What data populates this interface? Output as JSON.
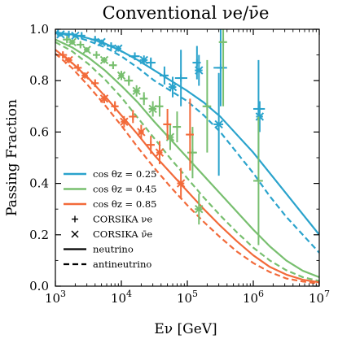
{
  "chart_data": {
    "type": "line",
    "title": "Conventional νe/ν̄e",
    "xlabel": "Eν [GeV]",
    "ylabel": "Passing Fraction",
    "xscale": "log",
    "xlim": [
      1000,
      10000000
    ],
    "ylim": [
      0.0,
      1.0
    ],
    "xticks": [
      {
        "value": 1000,
        "label": "10^3"
      },
      {
        "value": 10000,
        "label": "10^4"
      },
      {
        "value": 100000,
        "label": "10^5"
      },
      {
        "value": 1000000,
        "label": "10^6"
      },
      {
        "value": 10000000,
        "label": "10^7"
      }
    ],
    "yticks": [
      0.0,
      0.2,
      0.4,
      0.6,
      0.8,
      1.0
    ],
    "grid": false,
    "legend": {
      "placement": "bottom-left",
      "entries": [
        {
          "label": "cos θz = 0.25",
          "kind": "line",
          "color": "#2aa3cc"
        },
        {
          "label": "cos θz = 0.45",
          "kind": "line",
          "color": "#78bf6f"
        },
        {
          "label": "cos θz = 0.85",
          "kind": "line",
          "color": "#f26a3a"
        },
        {
          "label": "CORSIKA νe",
          "kind": "plus-marker",
          "color": "#000000"
        },
        {
          "label": "CORSIKA ν̄e",
          "kind": "cross-marker",
          "color": "#000000"
        },
        {
          "label": "neutrino",
          "kind": "solid",
          "color": "#000000"
        },
        {
          "label": "antineutrino",
          "kind": "dashed",
          "color": "#000000"
        }
      ]
    },
    "x": [
      1000,
      1778,
      3162,
      5623,
      10000,
      17783,
      31623,
      56234,
      100000,
      177828,
      316228,
      562341,
      1000000,
      1778279,
      3162278,
      5623413,
      10000000
    ],
    "series": [
      {
        "group": "cos θz = 0.25",
        "flavor": "neutrino",
        "style": "solid",
        "color": "#2aa3cc",
        "values": [
          0.988,
          0.98,
          0.965,
          0.945,
          0.915,
          0.88,
          0.84,
          0.8,
          0.76,
          0.715,
          0.66,
          0.59,
          0.52,
          0.44,
          0.36,
          0.28,
          0.2
        ]
      },
      {
        "group": "cos θz = 0.25",
        "flavor": "antineutrino",
        "style": "dashed",
        "color": "#2aa3cc",
        "values": [
          0.985,
          0.975,
          0.955,
          0.93,
          0.895,
          0.85,
          0.8,
          0.76,
          0.72,
          0.665,
          0.6,
          0.52,
          0.44,
          0.35,
          0.27,
          0.2,
          0.13
        ]
      },
      {
        "group": "cos θz = 0.45",
        "flavor": "neutrino",
        "style": "solid",
        "color": "#78bf6f",
        "values": [
          0.96,
          0.93,
          0.89,
          0.84,
          0.78,
          0.715,
          0.64,
          0.57,
          0.5,
          0.43,
          0.36,
          0.29,
          0.22,
          0.155,
          0.1,
          0.06,
          0.035
        ]
      },
      {
        "group": "cos θz = 0.45",
        "flavor": "antineutrino",
        "style": "dashed",
        "color": "#78bf6f",
        "values": [
          0.95,
          0.915,
          0.865,
          0.805,
          0.735,
          0.655,
          0.575,
          0.495,
          0.42,
          0.345,
          0.275,
          0.21,
          0.15,
          0.1,
          0.062,
          0.035,
          0.02
        ]
      },
      {
        "group": "cos θz = 0.85",
        "flavor": "neutrino",
        "style": "solid",
        "color": "#f26a3a",
        "values": [
          0.92,
          0.87,
          0.81,
          0.74,
          0.665,
          0.59,
          0.51,
          0.44,
          0.37,
          0.3,
          0.235,
          0.175,
          0.12,
          0.075,
          0.045,
          0.025,
          0.015
        ]
      },
      {
        "group": "cos θz = 0.85",
        "flavor": "antineutrino",
        "style": "dashed",
        "color": "#f26a3a",
        "values": [
          0.905,
          0.85,
          0.78,
          0.705,
          0.625,
          0.54,
          0.46,
          0.385,
          0.315,
          0.25,
          0.19,
          0.135,
          0.09,
          0.055,
          0.03,
          0.018,
          0.01
        ]
      }
    ],
    "corsika_points": [
      {
        "group": "cos θz = 0.25",
        "color": "#2aa3cc",
        "marker": "plus",
        "E": 1100,
        "y": 0.985,
        "yerr": 0.008,
        "xlo": 1000,
        "xhi": 1260
      },
      {
        "group": "cos θz = 0.25",
        "color": "#2aa3cc",
        "marker": "plus",
        "E": 1600,
        "y": 0.98,
        "yerr": 0.008,
        "xlo": 1400,
        "xhi": 1800
      },
      {
        "group": "cos θz = 0.25",
        "color": "#2aa3cc",
        "marker": "plus",
        "E": 2500,
        "y": 0.975,
        "yerr": 0.01,
        "xlo": 2200,
        "xhi": 2800
      },
      {
        "group": "cos θz = 0.25",
        "color": "#2aa3cc",
        "marker": "plus",
        "E": 4000,
        "y": 0.96,
        "yerr": 0.01,
        "xlo": 3500,
        "xhi": 4500
      },
      {
        "group": "cos θz = 0.25",
        "color": "#2aa3cc",
        "marker": "plus",
        "E": 7000,
        "y": 0.935,
        "yerr": 0.012,
        "xlo": 6000,
        "xhi": 8000
      },
      {
        "group": "cos θz = 0.25",
        "color": "#2aa3cc",
        "marker": "plus",
        "E": 16000,
        "y": 0.895,
        "yerr": 0.015,
        "xlo": 13000,
        "xhi": 19000
      },
      {
        "group": "cos θz = 0.25",
        "color": "#2aa3cc",
        "marker": "plus",
        "E": 28000,
        "y": 0.87,
        "yerr": 0.02,
        "xlo": 24000,
        "xhi": 33000
      },
      {
        "group": "cos θz = 0.25",
        "color": "#2aa3cc",
        "marker": "plus",
        "E": 45000,
        "y": 0.82,
        "yerr": 0.035,
        "xlo": 38000,
        "xhi": 52000
      },
      {
        "group": "cos θz = 0.25",
        "color": "#2aa3cc",
        "marker": "plus",
        "E": 80000,
        "y": 0.81,
        "yerr": 0.11,
        "xlo": 65000,
        "xhi": 100000
      },
      {
        "group": "cos θz = 0.25",
        "color": "#2aa3cc",
        "marker": "plus",
        "E": 140000,
        "y": 0.87,
        "yerr": 0.065,
        "xlo": 120000,
        "xhi": 160000
      },
      {
        "group": "cos θz = 0.25",
        "color": "#2aa3cc",
        "marker": "plus",
        "E": 320000,
        "y": 0.85,
        "yerr": 0.15,
        "xlo": 250000,
        "xhi": 400000
      },
      {
        "group": "cos θz = 0.25",
        "color": "#2aa3cc",
        "marker": "plus",
        "E": 1200000,
        "y": 0.69,
        "yerr": 0.19,
        "xlo": 1000000,
        "xhi": 1500000
      },
      {
        "group": "cos θz = 0.25",
        "color": "#2aa3cc",
        "marker": "cross",
        "E": 1200,
        "y": 0.98,
        "yerr": 0.008,
        "xlo": 1050,
        "xhi": 1350
      },
      {
        "group": "cos θz = 0.25",
        "color": "#2aa3cc",
        "marker": "cross",
        "E": 2000,
        "y": 0.975,
        "yerr": 0.008,
        "xlo": 1800,
        "xhi": 2200
      },
      {
        "group": "cos θz = 0.25",
        "color": "#2aa3cc",
        "marker": "cross",
        "E": 5000,
        "y": 0.95,
        "yerr": 0.01,
        "xlo": 4500,
        "xhi": 5500
      },
      {
        "group": "cos θz = 0.25",
        "color": "#2aa3cc",
        "marker": "cross",
        "E": 9000,
        "y": 0.925,
        "yerr": 0.012,
        "xlo": 8000,
        "xhi": 10000
      },
      {
        "group": "cos θz = 0.25",
        "color": "#2aa3cc",
        "marker": "cross",
        "E": 22000,
        "y": 0.88,
        "yerr": 0.018,
        "xlo": 19000,
        "xhi": 25000
      },
      {
        "group": "cos θz = 0.25",
        "color": "#2aa3cc",
        "marker": "cross",
        "E": 60000,
        "y": 0.775,
        "yerr": 0.04,
        "xlo": 52000,
        "xhi": 68000
      },
      {
        "group": "cos θz = 0.25",
        "color": "#2aa3cc",
        "marker": "cross",
        "E": 150000,
        "y": 0.84,
        "yerr": 0.06,
        "xlo": 130000,
        "xhi": 170000
      },
      {
        "group": "cos θz = 0.25",
        "color": "#2aa3cc",
        "marker": "cross",
        "E": 300000,
        "y": 0.63,
        "yerr": 0.2,
        "xlo": 250000,
        "xhi": 350000
      },
      {
        "group": "cos θz = 0.25",
        "color": "#2aa3cc",
        "marker": "cross",
        "E": 1250000,
        "y": 0.66,
        "yerr": 0.06,
        "xlo": 1100000,
        "xhi": 1400000
      },
      {
        "group": "cos θz = 0.45",
        "color": "#78bf6f",
        "marker": "plus",
        "E": 1500,
        "y": 0.96,
        "yerr": 0.01,
        "xlo": 1300,
        "xhi": 1700
      },
      {
        "group": "cos θz = 0.45",
        "color": "#78bf6f",
        "marker": "plus",
        "E": 2400,
        "y": 0.94,
        "yerr": 0.01,
        "xlo": 2100,
        "xhi": 2700
      },
      {
        "group": "cos θz = 0.45",
        "color": "#78bf6f",
        "marker": "plus",
        "E": 4200,
        "y": 0.9,
        "yerr": 0.012,
        "xlo": 3700,
        "xhi": 4700
      },
      {
        "group": "cos θz = 0.45",
        "color": "#78bf6f",
        "marker": "plus",
        "E": 7500,
        "y": 0.86,
        "yerr": 0.015,
        "xlo": 6500,
        "xhi": 8500
      },
      {
        "group": "cos θz = 0.45",
        "color": "#78bf6f",
        "marker": "plus",
        "E": 13000,
        "y": 0.8,
        "yerr": 0.02,
        "xlo": 11000,
        "xhi": 15000
      },
      {
        "group": "cos θz = 0.45",
        "color": "#78bf6f",
        "marker": "plus",
        "E": 22000,
        "y": 0.73,
        "yerr": 0.025,
        "xlo": 19000,
        "xhi": 25000
      },
      {
        "group": "cos θz = 0.45",
        "color": "#78bf6f",
        "marker": "plus",
        "E": 38000,
        "y": 0.7,
        "yerr": 0.04,
        "xlo": 33000,
        "xhi": 43000
      },
      {
        "group": "cos θz = 0.45",
        "color": "#78bf6f",
        "marker": "plus",
        "E": 70000,
        "y": 0.62,
        "yerr": 0.06,
        "xlo": 60000,
        "xhi": 80000
      },
      {
        "group": "cos θz = 0.45",
        "color": "#78bf6f",
        "marker": "plus",
        "E": 120000,
        "y": 0.52,
        "yerr": 0.1,
        "xlo": 100000,
        "xhi": 140000
      },
      {
        "group": "cos θz = 0.45",
        "color": "#78bf6f",
        "marker": "plus",
        "E": 200000,
        "y": 0.7,
        "yerr": 0.18,
        "xlo": 170000,
        "xhi": 230000
      },
      {
        "group": "cos θz = 0.45",
        "color": "#78bf6f",
        "marker": "plus",
        "E": 350000,
        "y": 0.95,
        "yerr": 0.25,
        "xlo": 300000,
        "xhi": 400000
      },
      {
        "group": "cos θz = 0.45",
        "color": "#78bf6f",
        "marker": "plus",
        "E": 1200000,
        "y": 0.41,
        "yerr": 0.25,
        "xlo": 1000000,
        "xhi": 1400000
      },
      {
        "group": "cos θz = 0.45",
        "color": "#78bf6f",
        "marker": "cross",
        "E": 1800,
        "y": 0.95,
        "yerr": 0.01,
        "xlo": 1600,
        "xhi": 2000
      },
      {
        "group": "cos θz = 0.45",
        "color": "#78bf6f",
        "marker": "cross",
        "E": 3000,
        "y": 0.92,
        "yerr": 0.01,
        "xlo": 2700,
        "xhi": 3300
      },
      {
        "group": "cos θz = 0.45",
        "color": "#78bf6f",
        "marker": "cross",
        "E": 5500,
        "y": 0.88,
        "yerr": 0.012,
        "xlo": 4900,
        "xhi": 6100
      },
      {
        "group": "cos θz = 0.45",
        "color": "#78bf6f",
        "marker": "cross",
        "E": 10000,
        "y": 0.82,
        "yerr": 0.018,
        "xlo": 9000,
        "xhi": 11000
      },
      {
        "group": "cos θz = 0.45",
        "color": "#78bf6f",
        "marker": "cross",
        "E": 17000,
        "y": 0.76,
        "yerr": 0.022,
        "xlo": 15000,
        "xhi": 19000
      },
      {
        "group": "cos θz = 0.45",
        "color": "#78bf6f",
        "marker": "cross",
        "E": 30000,
        "y": 0.69,
        "yerr": 0.03,
        "xlo": 26000,
        "xhi": 34000
      },
      {
        "group": "cos θz = 0.45",
        "color": "#78bf6f",
        "marker": "cross",
        "E": 55000,
        "y": 0.58,
        "yerr": 0.05,
        "xlo": 48000,
        "xhi": 62000
      },
      {
        "group": "cos θz = 0.45",
        "color": "#78bf6f",
        "marker": "cross",
        "E": 150000,
        "y": 0.3,
        "yerr": 0.06,
        "xlo": 130000,
        "xhi": 170000
      },
      {
        "group": "cos θz = 0.85",
        "color": "#f26a3a",
        "marker": "plus",
        "E": 1300,
        "y": 0.9,
        "yerr": 0.012,
        "xlo": 1100,
        "xhi": 1500
      },
      {
        "group": "cos θz = 0.85",
        "color": "#f26a3a",
        "marker": "plus",
        "E": 2200,
        "y": 0.85,
        "yerr": 0.012,
        "xlo": 1900,
        "xhi": 2500
      },
      {
        "group": "cos θz = 0.85",
        "color": "#f26a3a",
        "marker": "plus",
        "E": 4000,
        "y": 0.79,
        "yerr": 0.015,
        "xlo": 3500,
        "xhi": 4500
      },
      {
        "group": "cos θz = 0.85",
        "color": "#f26a3a",
        "marker": "plus",
        "E": 8000,
        "y": 0.7,
        "yerr": 0.02,
        "xlo": 7000,
        "xhi": 9000
      },
      {
        "group": "cos θz = 0.85",
        "color": "#f26a3a",
        "marker": "plus",
        "E": 15000,
        "y": 0.66,
        "yerr": 0.025,
        "xlo": 13000,
        "xhi": 17000
      },
      {
        "group": "cos θz = 0.85",
        "color": "#f26a3a",
        "marker": "plus",
        "E": 28000,
        "y": 0.55,
        "yerr": 0.035,
        "xlo": 24000,
        "xhi": 32000
      },
      {
        "group": "cos θz = 0.85",
        "color": "#f26a3a",
        "marker": "plus",
        "E": 50000,
        "y": 0.63,
        "yerr": 0.06,
        "xlo": 43000,
        "xhi": 57000
      },
      {
        "group": "cos θz = 0.85",
        "color": "#f26a3a",
        "marker": "plus",
        "E": 110000,
        "y": 0.59,
        "yerr": 0.14,
        "xlo": 95000,
        "xhi": 125000
      },
      {
        "group": "cos θz = 0.85",
        "color": "#f26a3a",
        "marker": "cross",
        "E": 1600,
        "y": 0.88,
        "yerr": 0.012,
        "xlo": 1400,
        "xhi": 1800
      },
      {
        "group": "cos θz = 0.85",
        "color": "#f26a3a",
        "marker": "cross",
        "E": 2800,
        "y": 0.82,
        "yerr": 0.012,
        "xlo": 2500,
        "xhi": 3100
      },
      {
        "group": "cos θz = 0.85",
        "color": "#f26a3a",
        "marker": "cross",
        "E": 5500,
        "y": 0.73,
        "yerr": 0.018,
        "xlo": 4900,
        "xhi": 6100
      },
      {
        "group": "cos θz = 0.85",
        "color": "#f26a3a",
        "marker": "cross",
        "E": 11000,
        "y": 0.64,
        "yerr": 0.022,
        "xlo": 9800,
        "xhi": 12200
      },
      {
        "group": "cos θz = 0.85",
        "color": "#f26a3a",
        "marker": "cross",
        "E": 20000,
        "y": 0.6,
        "yerr": 0.028,
        "xlo": 18000,
        "xhi": 22000
      },
      {
        "group": "cos θz = 0.85",
        "color": "#f26a3a",
        "marker": "cross",
        "E": 38000,
        "y": 0.52,
        "yerr": 0.045,
        "xlo": 34000,
        "xhi": 42000
      },
      {
        "group": "cos θz = 0.85",
        "color": "#f26a3a",
        "marker": "cross",
        "E": 80000,
        "y": 0.4,
        "yerr": 0.06,
        "xlo": 70000,
        "xhi": 90000
      }
    ]
  }
}
